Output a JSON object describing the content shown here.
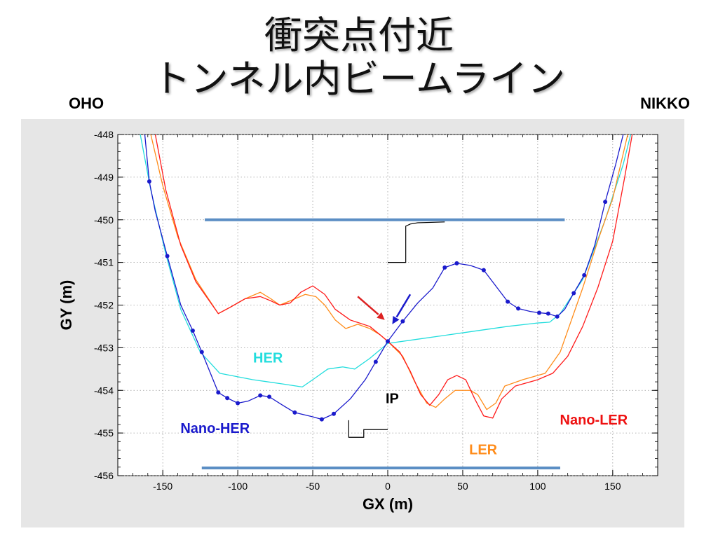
{
  "slide": {
    "title_line1": "衝突点付近",
    "title_line2": "トンネル内ビームライン",
    "left_label": "OHO",
    "right_label": "NIKKO"
  },
  "chart_data": {
    "type": "line",
    "xlabel": "GX (m)",
    "ylabel": "GY (m)",
    "xlim": [
      -180,
      180
    ],
    "ylim": [
      -456,
      -448
    ],
    "xticks": [
      -150,
      -100,
      -50,
      0,
      50,
      100,
      150
    ],
    "yticks": [
      -448,
      -449,
      -450,
      -451,
      -452,
      -453,
      -454,
      -455,
      -456
    ],
    "grid": true,
    "series": [
      {
        "name": "HER",
        "color": "#22dddd",
        "markers": false,
        "points": [
          [
            -165,
            -448
          ],
          [
            -158,
            -449.3
          ],
          [
            -148,
            -450.8
          ],
          [
            -138,
            -452.1
          ],
          [
            -125,
            -453.1
          ],
          [
            -112,
            -453.6
          ],
          [
            -90,
            -453.75
          ],
          [
            -70,
            -453.85
          ],
          [
            -57,
            -453.92
          ],
          [
            -48,
            -453.7
          ],
          [
            -40,
            -453.5
          ],
          [
            -30,
            -453.45
          ],
          [
            -22,
            -453.5
          ],
          [
            -12,
            -453.25
          ],
          [
            0,
            -452.9
          ],
          [
            20,
            -452.8
          ],
          [
            50,
            -452.65
          ],
          [
            80,
            -452.5
          ],
          [
            100,
            -452.42
          ],
          [
            108,
            -452.4
          ],
          [
            115,
            -452.2
          ],
          [
            130,
            -451.4
          ],
          [
            145,
            -450.0
          ],
          [
            157,
            -448.7
          ],
          [
            162,
            -448.0
          ]
        ]
      },
      {
        "name": "LER",
        "color": "#ff8c1a",
        "markers": false,
        "points": [
          [
            -158,
            -448
          ],
          [
            -150,
            -449.2
          ],
          [
            -140,
            -450.4
          ],
          [
            -128,
            -451.4
          ],
          [
            -113,
            -452.2
          ],
          [
            -105,
            -452.05
          ],
          [
            -95,
            -451.85
          ],
          [
            -85,
            -451.7
          ],
          [
            -78,
            -451.85
          ],
          [
            -72,
            -452.0
          ],
          [
            -65,
            -451.9
          ],
          [
            -55,
            -451.75
          ],
          [
            -48,
            -451.8
          ],
          [
            -42,
            -452.0
          ],
          [
            -35,
            -452.35
          ],
          [
            -28,
            -452.55
          ],
          [
            -20,
            -452.45
          ],
          [
            -12,
            -452.55
          ],
          [
            -5,
            -452.7
          ],
          [
            0,
            -452.85
          ],
          [
            10,
            -453.2
          ],
          [
            18,
            -453.8
          ],
          [
            26,
            -454.3
          ],
          [
            32,
            -454.4
          ],
          [
            38,
            -454.2
          ],
          [
            45,
            -454.0
          ],
          [
            55,
            -454.0
          ],
          [
            60,
            -454.1
          ],
          [
            66,
            -454.45
          ],
          [
            72,
            -454.3
          ],
          [
            78,
            -453.9
          ],
          [
            90,
            -453.75
          ],
          [
            105,
            -453.6
          ],
          [
            115,
            -453.1
          ],
          [
            130,
            -451.6
          ],
          [
            140,
            -450.5
          ],
          [
            150,
            -449.5
          ],
          [
            160,
            -448.0
          ]
        ]
      },
      {
        "name": "Nano-LER",
        "color": "#ff1a1a",
        "markers": false,
        "points": [
          [
            -155,
            -448
          ],
          [
            -148,
            -449.3
          ],
          [
            -138,
            -450.6
          ],
          [
            -128,
            -451.45
          ],
          [
            -113,
            -452.2
          ],
          [
            -105,
            -452.05
          ],
          [
            -95,
            -451.85
          ],
          [
            -85,
            -451.8
          ],
          [
            -78,
            -451.9
          ],
          [
            -72,
            -452.0
          ],
          [
            -65,
            -451.95
          ],
          [
            -58,
            -451.7
          ],
          [
            -50,
            -451.55
          ],
          [
            -42,
            -451.75
          ],
          [
            -35,
            -452.1
          ],
          [
            -25,
            -452.35
          ],
          [
            -12,
            -452.5
          ],
          [
            -5,
            -452.7
          ],
          [
            0,
            -452.85
          ],
          [
            8,
            -453.1
          ],
          [
            15,
            -453.55
          ],
          [
            22,
            -454.1
          ],
          [
            28,
            -454.35
          ],
          [
            34,
            -454.1
          ],
          [
            40,
            -453.75
          ],
          [
            46,
            -453.65
          ],
          [
            52,
            -453.75
          ],
          [
            58,
            -454.2
          ],
          [
            64,
            -454.6
          ],
          [
            70,
            -454.65
          ],
          [
            76,
            -454.2
          ],
          [
            85,
            -453.9
          ],
          [
            100,
            -453.75
          ],
          [
            110,
            -453.6
          ],
          [
            120,
            -453.2
          ],
          [
            130,
            -452.5
          ],
          [
            140,
            -451.6
          ],
          [
            150,
            -450.5
          ],
          [
            158,
            -449.0
          ],
          [
            163,
            -448.0
          ]
        ]
      },
      {
        "name": "Nano-HER",
        "color": "#1a1acc",
        "markers": true,
        "points": [
          [
            -162,
            -448
          ],
          [
            -159,
            -449.1
          ],
          [
            -155,
            -449.8
          ],
          [
            -147,
            -450.85
          ],
          [
            -138,
            -452.0
          ],
          [
            -130,
            -452.6
          ],
          [
            -124,
            -453.1
          ],
          [
            -113,
            -454.05
          ],
          [
            -107,
            -454.18
          ],
          [
            -100,
            -454.3
          ],
          [
            -93,
            -454.25
          ],
          [
            -85,
            -454.12
          ],
          [
            -79,
            -454.15
          ],
          [
            -70,
            -454.35
          ],
          [
            -62,
            -454.52
          ],
          [
            -50,
            -454.62
          ],
          [
            -44,
            -454.68
          ],
          [
            -36,
            -454.55
          ],
          [
            -25,
            -454.2
          ],
          [
            -15,
            -453.75
          ],
          [
            -8,
            -453.33
          ],
          [
            0,
            -452.85
          ],
          [
            10,
            -452.38
          ],
          [
            20,
            -451.95
          ],
          [
            30,
            -451.6
          ],
          [
            38,
            -451.12
          ],
          [
            46,
            -451.02
          ],
          [
            55,
            -451.07
          ],
          [
            64,
            -451.18
          ],
          [
            72,
            -451.55
          ],
          [
            80,
            -451.92
          ],
          [
            87,
            -452.08
          ],
          [
            95,
            -452.15
          ],
          [
            101,
            -452.18
          ],
          [
            107,
            -452.2
          ],
          [
            113,
            -452.27
          ],
          [
            118,
            -452.1
          ],
          [
            124,
            -451.72
          ],
          [
            131,
            -451.3
          ],
          [
            138,
            -450.6
          ],
          [
            145,
            -449.58
          ],
          [
            152,
            -448.7
          ],
          [
            157,
            -448.0
          ]
        ],
        "marker_points": [
          [
            -159,
            -449.1
          ],
          [
            -147,
            -450.85
          ],
          [
            -130,
            -452.6
          ],
          [
            -124,
            -453.1
          ],
          [
            -113,
            -454.05
          ],
          [
            -107,
            -454.18
          ],
          [
            -100,
            -454.3
          ],
          [
            -85,
            -454.12
          ],
          [
            -79,
            -454.15
          ],
          [
            -62,
            -454.52
          ],
          [
            -44,
            -454.68
          ],
          [
            -36,
            -454.55
          ],
          [
            -8,
            -453.33
          ],
          [
            0,
            -452.85
          ],
          [
            10,
            -452.38
          ],
          [
            38,
            -451.12
          ],
          [
            46,
            -451.02
          ],
          [
            64,
            -451.18
          ],
          [
            80,
            -451.92
          ],
          [
            87,
            -452.08
          ],
          [
            101,
            -452.18
          ],
          [
            107,
            -452.2
          ],
          [
            113,
            -452.27
          ],
          [
            124,
            -451.72
          ],
          [
            131,
            -451.3
          ],
          [
            145,
            -449.58
          ]
        ]
      }
    ],
    "structures": [
      {
        "color": "#5b8ec4",
        "points": [
          [
            -122,
            -450.0
          ],
          [
            118,
            -450.0
          ]
        ]
      },
      {
        "color": "#5b8ec4",
        "points": [
          [
            -124,
            -455.82
          ],
          [
            115,
            -455.82
          ]
        ]
      },
      {
        "color": "#000000",
        "points": [
          [
            0,
            -451.0
          ],
          [
            12,
            -451.0
          ],
          [
            12,
            -450.15
          ],
          [
            15,
            -450.1
          ],
          [
            20,
            -450.07
          ],
          [
            38,
            -450.05
          ]
        ]
      },
      {
        "color": "#000000",
        "points": [
          [
            -26,
            -454.7
          ],
          [
            -26,
            -455.1
          ],
          [
            -16,
            -455.1
          ],
          [
            -16,
            -454.92
          ],
          [
            0,
            -454.92
          ]
        ]
      }
    ],
    "arrows": [
      {
        "color": "#dd2222",
        "from": [
          -20,
          -451.8
        ],
        "to": [
          -2,
          -452.35
        ]
      },
      {
        "color": "#1a1acc",
        "from": [
          15,
          -451.75
        ],
        "to": [
          3,
          -452.45
        ]
      }
    ],
    "annotations": [
      {
        "text": "HER",
        "color": "#22dddd",
        "x": -70,
        "y": -453.35,
        "anchor": "end"
      },
      {
        "text": "IP",
        "color": "#000000",
        "x": 3,
        "y": -454.3,
        "anchor": "middle"
      },
      {
        "text": "Nano-HER",
        "color": "#1a1acc",
        "x": -92,
        "y": -455.0,
        "anchor": "end"
      },
      {
        "text": "LER",
        "color": "#ff8c1a",
        "x": 73,
        "y": -455.5,
        "anchor": "end"
      },
      {
        "text": "Nano-LER",
        "color": "#ee1111",
        "x": 160,
        "y": -454.8,
        "anchor": "end"
      }
    ]
  }
}
